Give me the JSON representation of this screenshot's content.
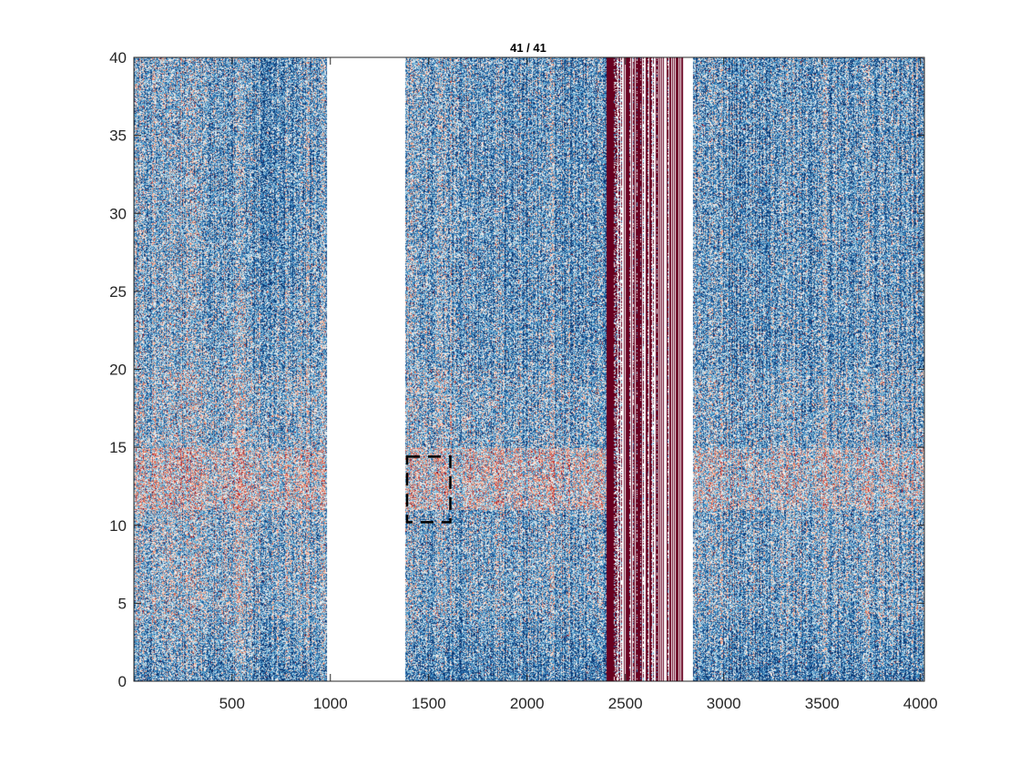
{
  "chart_data": {
    "type": "heatmap",
    "title": "41 / 41",
    "xlabel": "",
    "ylabel": "",
    "xlim": [
      1,
      4020
    ],
    "ylim": [
      0,
      40
    ],
    "xticks": [
      500,
      1000,
      1500,
      2000,
      2500,
      3000,
      3500,
      4000
    ],
    "yticks": [
      0,
      5,
      10,
      15,
      20,
      25,
      30,
      35,
      40
    ],
    "colormap": [
      "#08306b",
      "#2166ac",
      "#4393c3",
      "#92c5de",
      "#f7f7f7",
      "#f4a582",
      "#d6604d",
      "#b2182b",
      "#67001f"
    ],
    "gap_regions": [
      [
        980,
        1380
      ],
      [
        2790,
        2840
      ]
    ],
    "saturated_region": [
      2400,
      2790
    ],
    "selection_box": {
      "x": [
        1390,
        1610
      ],
      "y": [
        10.2,
        14.4
      ],
      "style": "dashed",
      "color": "#000000"
    },
    "enhanced_band": {
      "y": [
        11,
        15
      ],
      "description": ""
    },
    "grid": false,
    "legend": "none"
  }
}
